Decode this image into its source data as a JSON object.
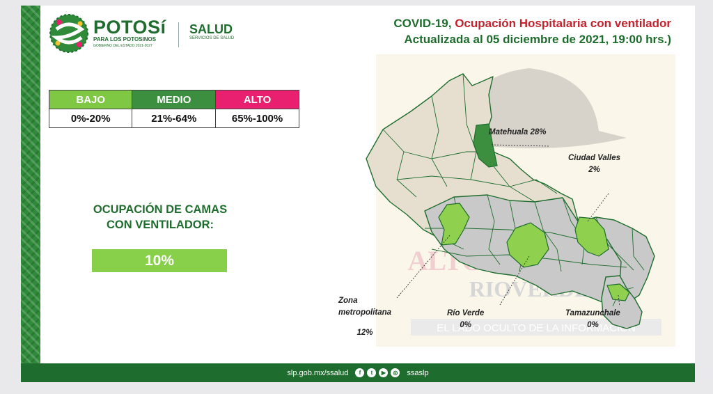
{
  "header": {
    "brand_name": "POTOSí",
    "brand_tagline": "PARA LOS POTOSINOS",
    "brand_subline": "GOBIERNO DEL ESTADO 2021-2027",
    "salud_title": "SALUD",
    "salud_subtitle": "SERVICIOS DE SALUD",
    "title_prefix": "COVID-19, ",
    "title_highlight": "Ocupación Hospitalaria con ventilador",
    "subtitle": "Actualizada al 05 diciembre de 2021, 19:00 hrs.)"
  },
  "legend": {
    "levels": [
      {
        "label": "BAJO",
        "range": "0%-20%",
        "color": "#7ec843"
      },
      {
        "label": "MEDIO",
        "range": "21%-64%",
        "color": "#3b8f3e"
      },
      {
        "label": "ALTO",
        "range": "65%-100%",
        "color": "#e8206f"
      }
    ]
  },
  "occupancy": {
    "label_line1": "OCUPACIÓN DE CAMAS",
    "label_line2": "CON VENTILADOR:",
    "value": "10%",
    "value_fraction": 0.1
  },
  "map_labels": {
    "matehuala": {
      "name": "Matehuala",
      "value": "28%"
    },
    "ciudad_valles": {
      "name": "Ciudad Valles",
      "value": "2%"
    },
    "zona_metro": {
      "name_line1": "Zona",
      "name_line2": "metropolitana",
      "value": "12%"
    },
    "rio_verde": {
      "name": "Río Verde",
      "value": "0%"
    },
    "tamazunchale": {
      "name": "Tamazunchale",
      "value": "0%"
    }
  },
  "watermark": {
    "top": "ALTO AL ROSTRO",
    "middle": "RIOVERDE",
    "bottom": "EL LADO OCULTO DE LA INFORMACIÓN"
  },
  "footer": {
    "url": "slp.gob.mx/ssalud",
    "handle": "ssaslp",
    "icons": [
      "facebook-icon",
      "twitter-icon",
      "youtube-icon",
      "instagram-icon"
    ]
  },
  "colors": {
    "brand_green": "#1f6d2e",
    "highlight_red": "#c4212d",
    "map_gray": "#c9c9c9",
    "map_low_green": "#8fd14f",
    "map_medium_green": "#3b8f3e"
  }
}
